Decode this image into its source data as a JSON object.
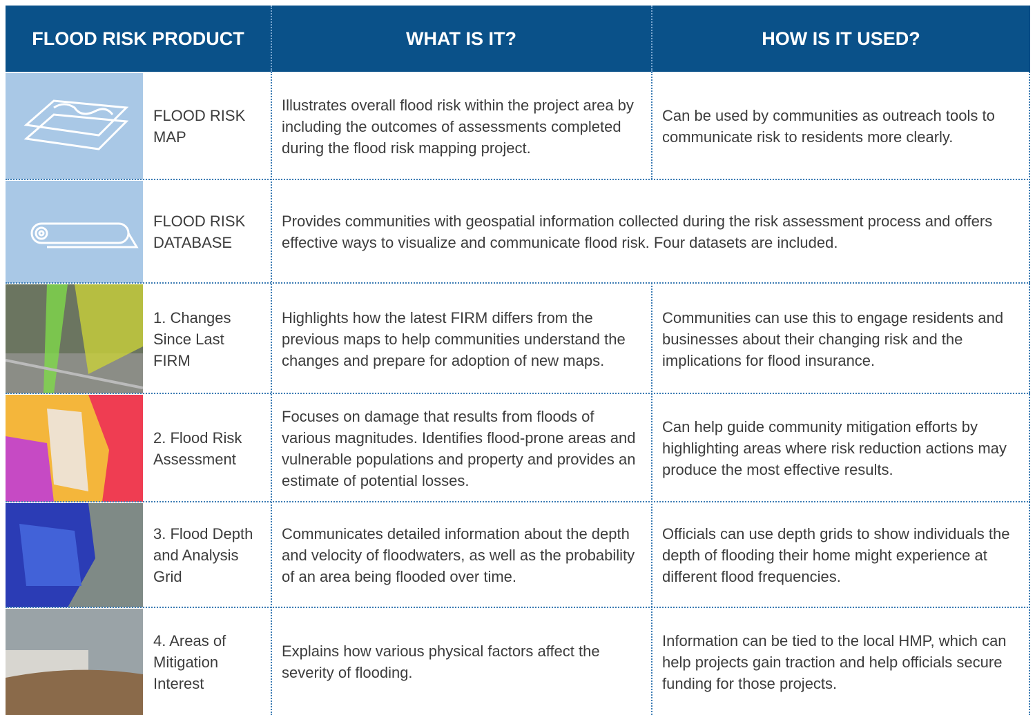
{
  "header": {
    "columns": [
      "FLOOD RISK PRODUCT",
      "WHAT IS IT?",
      "HOW IS IT USED?"
    ]
  },
  "rows": [
    {
      "product": "FLOOD RISK MAP",
      "what": "Illustrates overall flood risk within the project area by including the outcomes of assessments completed during the flood risk mapping project.",
      "how": "Can be used by communities as outreach tools to communicate risk to residents more clearly."
    },
    {
      "product": "FLOOD RISK DATABASE",
      "description": "Provides communities with geospatial information collected during the risk assessment process and offers effective ways to visualize and communicate flood risk. Four datasets are included."
    },
    {
      "product": "1. Changes Since Last FIRM",
      "what": "Highlights how the latest FIRM differs from the previous maps to help communities understand the changes and prepare for adoption of new maps.",
      "how": "Communities can use this to engage residents and businesses about their changing risk and the implications for flood insurance."
    },
    {
      "product": "2. Flood Risk Assessment",
      "what": "Focuses on damage that results from floods of various magnitudes. Identifies flood-prone areas and vulnerable populations and property and provides an estimate of potential losses.",
      "how": "Can help guide community mitigation efforts by highlighting areas where risk reduction actions may produce the most effective results."
    },
    {
      "product": "3. Flood Depth and Analysis Grid",
      "what": "Communicates detailed information about the depth and velocity of floodwaters, as well as the probability of an area being flooded over time.",
      "how": "Officials can use depth grids to show individuals the depth of flooding their home might experience at different flood frequencies."
    },
    {
      "product": "4. Areas of Mitigation Interest",
      "what": "Explains how various physical factors affect the severity of flooding.",
      "how": "Information can be tied to the local HMP, which can help projects gain traction and help officials secure funding for those projects."
    }
  ]
}
